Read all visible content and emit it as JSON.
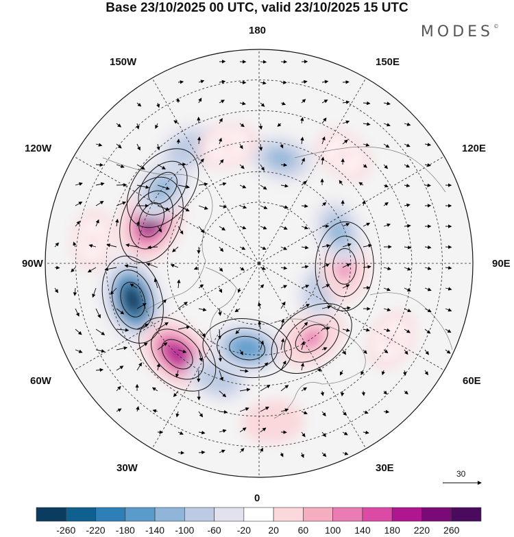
{
  "title": "Base 23/10/2025 00 UTC, valid 23/10/2025 15 UTC",
  "brand": "MODES",
  "brand_mark": "©",
  "longitude_labels": {
    "top": "180",
    "bottom": "0",
    "left": "90W",
    "right": "90E",
    "ul1": "150W",
    "ul2": "120W",
    "ur1": "150E",
    "ur2": "120E",
    "ll1": "60W",
    "ll2": "30W",
    "lr1": "60E",
    "lr2": "30E"
  },
  "vector_scale_label": "30",
  "colorbar": {
    "labels": [
      "-260",
      "-220",
      "-180",
      "-140",
      "-100",
      "-60",
      "-20",
      "20",
      "60",
      "100",
      "140",
      "180",
      "220",
      "260"
    ],
    "colors": [
      "#0b3b5e",
      "#0f5f8f",
      "#2f7fb7",
      "#5a9bcb",
      "#8fb5d9",
      "#bccbe3",
      "#e2e2ef",
      "#ffffff",
      "#fad8dc",
      "#f5aec0",
      "#ea7cb3",
      "#db4aa5",
      "#b0168f",
      "#7b0a79",
      "#4a0a5d"
    ]
  },
  "anomaly_cells": [
    {
      "lon": -112,
      "colat": 38,
      "value": 240
    },
    {
      "lon": -74,
      "colat": 43,
      "value": -250
    },
    {
      "lon": -42,
      "colat": 40,
      "value": 200
    },
    {
      "lon": -128,
      "colat": 40,
      "value": -120
    },
    {
      "lon": -148,
      "colat": 44,
      "value": -80
    },
    {
      "lon": -20,
      "colat": 40,
      "value": -80
    },
    {
      "lon": -8,
      "colat": 28,
      "value": -150
    },
    {
      "lon": 5,
      "colat": 52,
      "value": 70
    },
    {
      "lon": 35,
      "colat": 30,
      "value": 130
    },
    {
      "lon": 68,
      "colat": 22,
      "value": -80
    },
    {
      "lon": 88,
      "colat": 28,
      "value": 120
    },
    {
      "lon": 112,
      "colat": 28,
      "value": -100
    },
    {
      "lon": 168,
      "colat": 35,
      "value": -100
    },
    {
      "lon": 142,
      "colat": 45,
      "value": 60
    },
    {
      "lon": -165,
      "colat": 40,
      "value": 60
    },
    {
      "lon": 60,
      "colat": 50,
      "value": 60
    },
    {
      "lon": -98,
      "colat": 55,
      "value": 50
    }
  ]
}
